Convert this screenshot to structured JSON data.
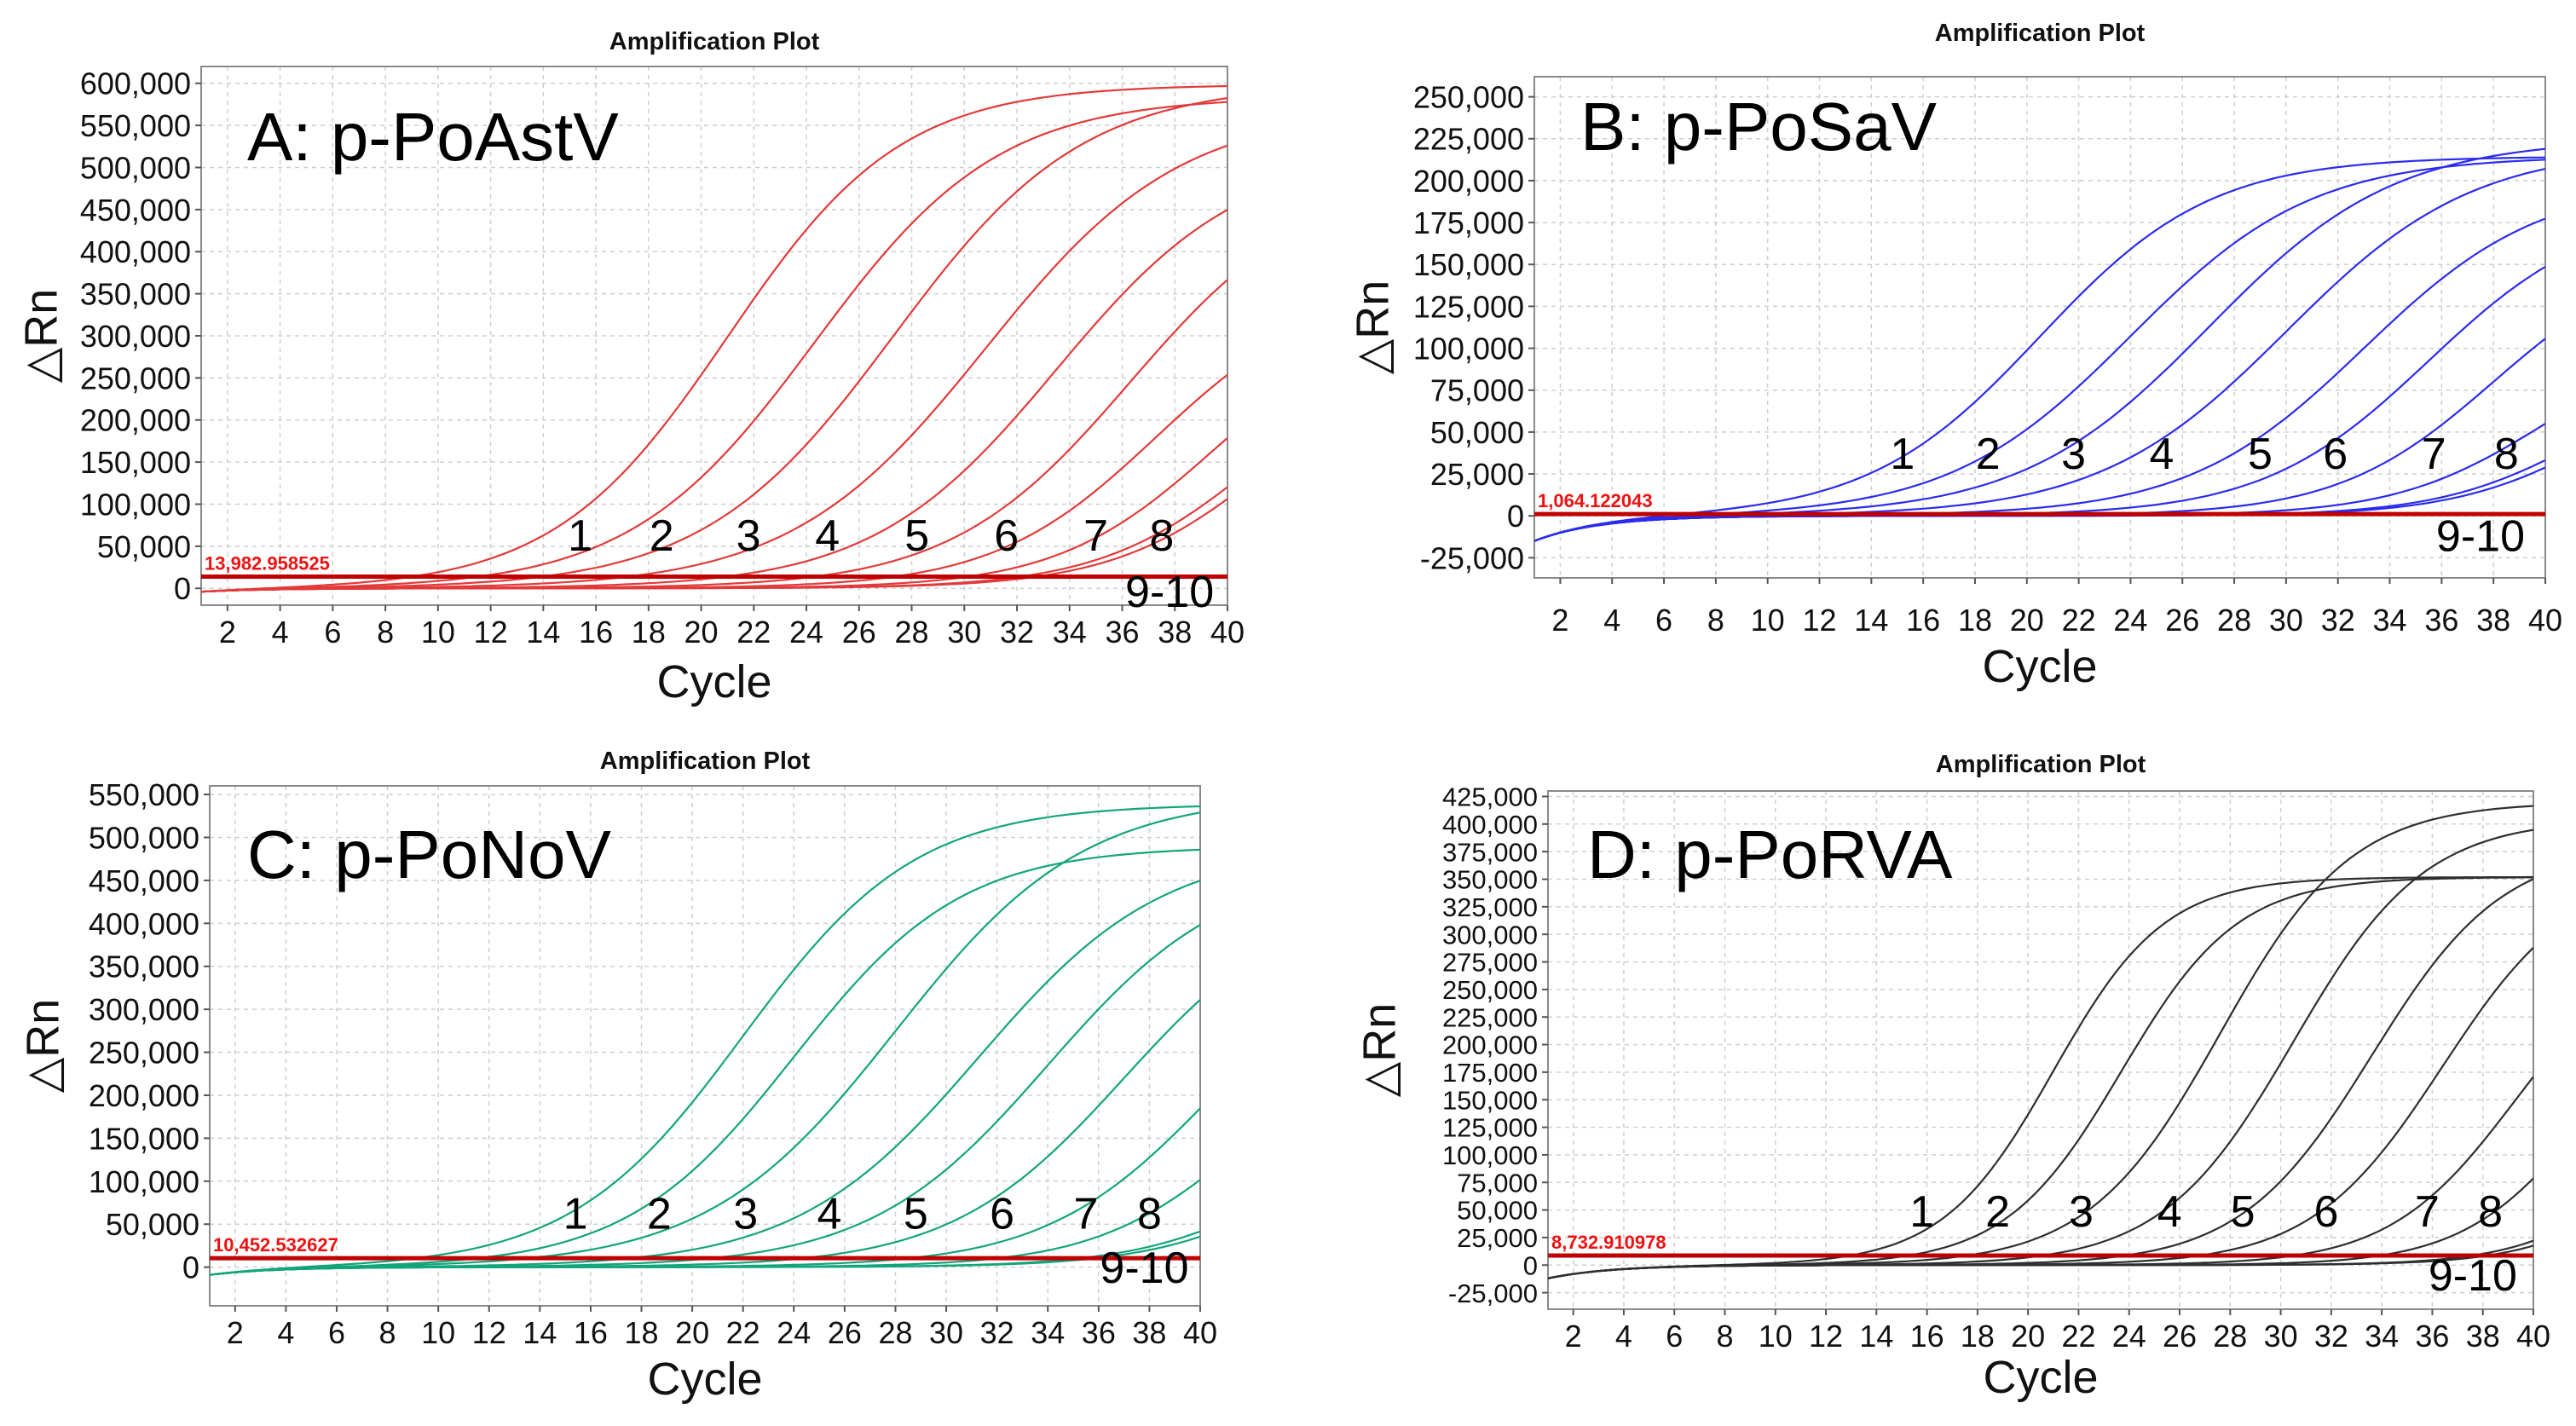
{
  "figure": {
    "background": "#ffffff"
  },
  "chart_data": [
    {
      "id": "A",
      "type": "line",
      "title": "Amplification Plot",
      "panel_label": "A: p-PoAstV",
      "xlabel": "Cycle",
      "ylabel": "△Rn",
      "xlim": [
        1,
        40
      ],
      "ylim": [
        -20000,
        620000
      ],
      "x_ticks": [
        2,
        4,
        6,
        8,
        10,
        12,
        14,
        16,
        18,
        20,
        22,
        24,
        26,
        28,
        30,
        32,
        34,
        36,
        38,
        40
      ],
      "y_ticks": [
        0,
        50000,
        100000,
        150000,
        200000,
        250000,
        300000,
        350000,
        400000,
        450000,
        500000,
        550000,
        600000
      ],
      "y_tick_labels": [
        "0",
        "50,000",
        "100,000",
        "150,000",
        "200,000",
        "250,000",
        "300,000",
        "350,000",
        "400,000",
        "450,000",
        "500,000",
        "550,000",
        "600,000"
      ],
      "color": "#e23a3a",
      "threshold": {
        "value": 13982.958525,
        "label": "13,982.958525",
        "color": "#c00000"
      },
      "baseline_start": -4000,
      "series": [
        {
          "name": "1",
          "plateau": 600000,
          "midpoint": 21.0,
          "slope": 3.3
        },
        {
          "name": "2",
          "plateau": 585000,
          "midpoint": 24.3,
          "slope": 3.5
        },
        {
          "name": "3",
          "plateau": 600000,
          "midpoint": 27.3,
          "slope": 3.6
        },
        {
          "name": "4",
          "plateau": 570000,
          "midpoint": 30.8,
          "slope": 3.7
        },
        {
          "name": "5",
          "plateau": 520000,
          "midpoint": 33.5,
          "slope": 3.5
        },
        {
          "name": "6",
          "plateau": 490000,
          "midpoint": 36.3,
          "slope": 3.4
        },
        {
          "name": "7",
          "plateau": 360000,
          "midpoint": 37.3,
          "slope": 3.1
        },
        {
          "name": "8",
          "plateau": 330000,
          "midpoint": 39.5,
          "slope": 3.0
        },
        {
          "name": "9-10",
          "plateau": 300000,
          "midpoint": 41.2,
          "slope": 3.0
        }
      ],
      "curve_labels": [
        {
          "text": "1",
          "x": 15.4,
          "y": 45000
        },
        {
          "text": "2",
          "x": 18.5,
          "y": 45000
        },
        {
          "text": "3",
          "x": 21.8,
          "y": 45000
        },
        {
          "text": "4",
          "x": 24.8,
          "y": 45000
        },
        {
          "text": "5",
          "x": 28.2,
          "y": 45000
        },
        {
          "text": "6",
          "x": 31.6,
          "y": 45000
        },
        {
          "text": "7",
          "x": 35.0,
          "y": 45000
        },
        {
          "text": "8",
          "x": 37.5,
          "y": 45000
        },
        {
          "text": "9-10",
          "x": 37.8,
          "y": -22000
        }
      ]
    },
    {
      "id": "B",
      "type": "line",
      "title": "Amplification Plot",
      "panel_label": "B: p-PoSaV",
      "xlabel": "Cycle",
      "ylabel": "△Rn",
      "xlim": [
        1,
        40
      ],
      "ylim": [
        -37000,
        262000
      ],
      "x_ticks": [
        2,
        4,
        6,
        8,
        10,
        12,
        14,
        16,
        18,
        20,
        22,
        24,
        26,
        28,
        30,
        32,
        34,
        36,
        38,
        40
      ],
      "y_ticks": [
        -25000,
        0,
        25000,
        50000,
        75000,
        100000,
        125000,
        150000,
        175000,
        200000,
        225000,
        250000
      ],
      "y_tick_labels": [
        "-25,000",
        "0",
        "25,000",
        "50,000",
        "75,000",
        "100,000",
        "125,000",
        "150,000",
        "175,000",
        "200,000",
        "225,000",
        "250,000"
      ],
      "color": "#2b2bf0",
      "threshold": {
        "value": 1064.122043,
        "label": "1,064.122043",
        "color": "#c00000"
      },
      "baseline_start": -15000,
      "series": [
        {
          "name": "1",
          "plateau": 215000,
          "midpoint": 20.5,
          "slope": 3.3
        },
        {
          "name": "2",
          "plateau": 215000,
          "midpoint": 24.0,
          "slope": 3.5
        },
        {
          "name": "3",
          "plateau": 225000,
          "midpoint": 27.0,
          "slope": 3.6
        },
        {
          "name": "4",
          "plateau": 220000,
          "midpoint": 30.0,
          "slope": 3.6
        },
        {
          "name": "5",
          "plateau": 200000,
          "midpoint": 33.0,
          "slope": 3.4
        },
        {
          "name": "6",
          "plateau": 185000,
          "midpoint": 35.5,
          "slope": 3.2
        },
        {
          "name": "7",
          "plateau": 160000,
          "midpoint": 38.0,
          "slope": 3.0
        },
        {
          "name": "8",
          "plateau": 110000,
          "midpoint": 40.0,
          "slope": 2.9
        },
        {
          "name": "9-10",
          "plateau": 90000,
          "midpoint": 41.5,
          "slope": 2.8
        }
      ],
      "curve_labels": [
        {
          "text": "1",
          "x": 15.2,
          "y": 28000
        },
        {
          "text": "2",
          "x": 18.5,
          "y": 28000
        },
        {
          "text": "3",
          "x": 21.8,
          "y": 28000
        },
        {
          "text": "4",
          "x": 25.2,
          "y": 28000
        },
        {
          "text": "5",
          "x": 29.0,
          "y": 28000
        },
        {
          "text": "6",
          "x": 31.9,
          "y": 28000
        },
        {
          "text": "7",
          "x": 35.7,
          "y": 28000
        },
        {
          "text": "8",
          "x": 38.5,
          "y": 28000
        },
        {
          "text": "9-10",
          "x": 37.5,
          "y": -21000
        }
      ]
    },
    {
      "id": "C",
      "type": "line",
      "title": "Amplification Plot",
      "panel_label": "C: p-PoNoV",
      "xlabel": "Cycle",
      "ylabel": "△Rn",
      "xlim": [
        1,
        40
      ],
      "ylim": [
        -45000,
        560000
      ],
      "x_ticks": [
        2,
        4,
        6,
        8,
        10,
        12,
        14,
        16,
        18,
        20,
        22,
        24,
        26,
        28,
        30,
        32,
        34,
        36,
        38,
        40
      ],
      "y_ticks": [
        0,
        50000,
        100000,
        150000,
        200000,
        250000,
        300000,
        350000,
        400000,
        450000,
        500000,
        550000
      ],
      "y_tick_labels": [
        "0",
        "50,000",
        "100,000",
        "150,000",
        "200,000",
        "250,000",
        "300,000",
        "350,000",
        "400,000",
        "450,000",
        "500,000",
        "550,000"
      ],
      "color": "#12a57a",
      "threshold": {
        "value": 10452.532627,
        "label": "10,452.532627",
        "color": "#c00000"
      },
      "baseline_start": -9000,
      "series": [
        {
          "name": "1",
          "plateau": 540000,
          "midpoint": 22.0,
          "slope": 3.4
        },
        {
          "name": "2",
          "plateau": 490000,
          "midpoint": 24.0,
          "slope": 3.3
        },
        {
          "name": "3",
          "plateau": 550000,
          "midpoint": 28.0,
          "slope": 3.7
        },
        {
          "name": "4",
          "plateau": 490000,
          "midpoint": 31.3,
          "slope": 3.6
        },
        {
          "name": "5",
          "plateau": 470000,
          "midpoint": 34.0,
          "slope": 3.5
        },
        {
          "name": "6",
          "plateau": 440000,
          "midpoint": 37.0,
          "slope": 3.4
        },
        {
          "name": "7",
          "plateau": 400000,
          "midpoint": 40.5,
          "slope": 3.3
        },
        {
          "name": "8",
          "plateau": 300000,
          "midpoint": 42.0,
          "slope": 3.0
        },
        {
          "name": "9-10",
          "plateau": 200000,
          "midpoint": 44.0,
          "slope": 3.0
        }
      ],
      "curve_labels": [
        {
          "text": "1",
          "x": 15.4,
          "y": 45000
        },
        {
          "text": "2",
          "x": 18.7,
          "y": 45000
        },
        {
          "text": "3",
          "x": 22.1,
          "y": 45000
        },
        {
          "text": "4",
          "x": 25.4,
          "y": 45000
        },
        {
          "text": "5",
          "x": 28.8,
          "y": 45000
        },
        {
          "text": "6",
          "x": 32.2,
          "y": 45000
        },
        {
          "text": "7",
          "x": 35.5,
          "y": 45000
        },
        {
          "text": "8",
          "x": 38.0,
          "y": 45000
        },
        {
          "text": "9-10",
          "x": 37.8,
          "y": -18000
        }
      ]
    },
    {
      "id": "D",
      "type": "line",
      "title": "Amplification Plot",
      "panel_label": "D: p-PoRVA",
      "xlabel": "Cycle",
      "ylabel": "△Rn",
      "xlim": [
        1,
        40
      ],
      "ylim": [
        -40000,
        430000
      ],
      "x_ticks": [
        2,
        4,
        6,
        8,
        10,
        12,
        14,
        16,
        18,
        20,
        22,
        24,
        26,
        28,
        30,
        32,
        34,
        36,
        38,
        40
      ],
      "y_ticks": [
        -25000,
        0,
        25000,
        50000,
        75000,
        100000,
        125000,
        150000,
        175000,
        200000,
        225000,
        250000,
        275000,
        300000,
        325000,
        350000,
        375000,
        400000,
        425000
      ],
      "y_tick_labels": [
        "-25,000",
        "0",
        "25,000",
        "50,000",
        "75,000",
        "100,000",
        "125,000",
        "150,000",
        "175,000",
        "200,000",
        "225,000",
        "250,000",
        "275,000",
        "300,000",
        "325,000",
        "350,000",
        "375,000",
        "400,000",
        "425,000"
      ],
      "color": "#2e2e2e",
      "threshold": {
        "value": 8732.910978,
        "label": "8,732.910978",
        "color": "#c00000"
      },
      "baseline_start": -12000,
      "series": [
        {
          "name": "1",
          "plateau": 352000,
          "midpoint": 21.0,
          "slope": 2.2
        },
        {
          "name": "2",
          "plateau": 352000,
          "midpoint": 23.7,
          "slope": 2.3
        },
        {
          "name": "3",
          "plateau": 420000,
          "midpoint": 27.6,
          "slope": 2.6
        },
        {
          "name": "4",
          "plateau": 405000,
          "midpoint": 30.5,
          "slope": 2.6
        },
        {
          "name": "5",
          "plateau": 380000,
          "midpoint": 33.6,
          "slope": 2.6
        },
        {
          "name": "6",
          "plateau": 360000,
          "midpoint": 36.4,
          "slope": 2.6
        },
        {
          "name": "7",
          "plateau": 300000,
          "midpoint": 39.3,
          "slope": 2.5
        },
        {
          "name": "8",
          "plateau": 260000,
          "midpoint": 42.0,
          "slope": 2.4
        },
        {
          "name": "9-10",
          "plateau": 200000,
          "midpoint": 45.0,
          "slope": 2.4
        }
      ],
      "curve_labels": [
        {
          "text": "1",
          "x": 15.8,
          "y": 35000
        },
        {
          "text": "2",
          "x": 18.8,
          "y": 35000
        },
        {
          "text": "3",
          "x": 22.1,
          "y": 35000
        },
        {
          "text": "4",
          "x": 25.6,
          "y": 35000
        },
        {
          "text": "5",
          "x": 28.5,
          "y": 35000
        },
        {
          "text": "6",
          "x": 31.8,
          "y": 35000
        },
        {
          "text": "7",
          "x": 35.8,
          "y": 35000
        },
        {
          "text": "8",
          "x": 38.3,
          "y": 35000
        },
        {
          "text": "9-10",
          "x": 37.6,
          "y": -23000
        }
      ]
    }
  ]
}
